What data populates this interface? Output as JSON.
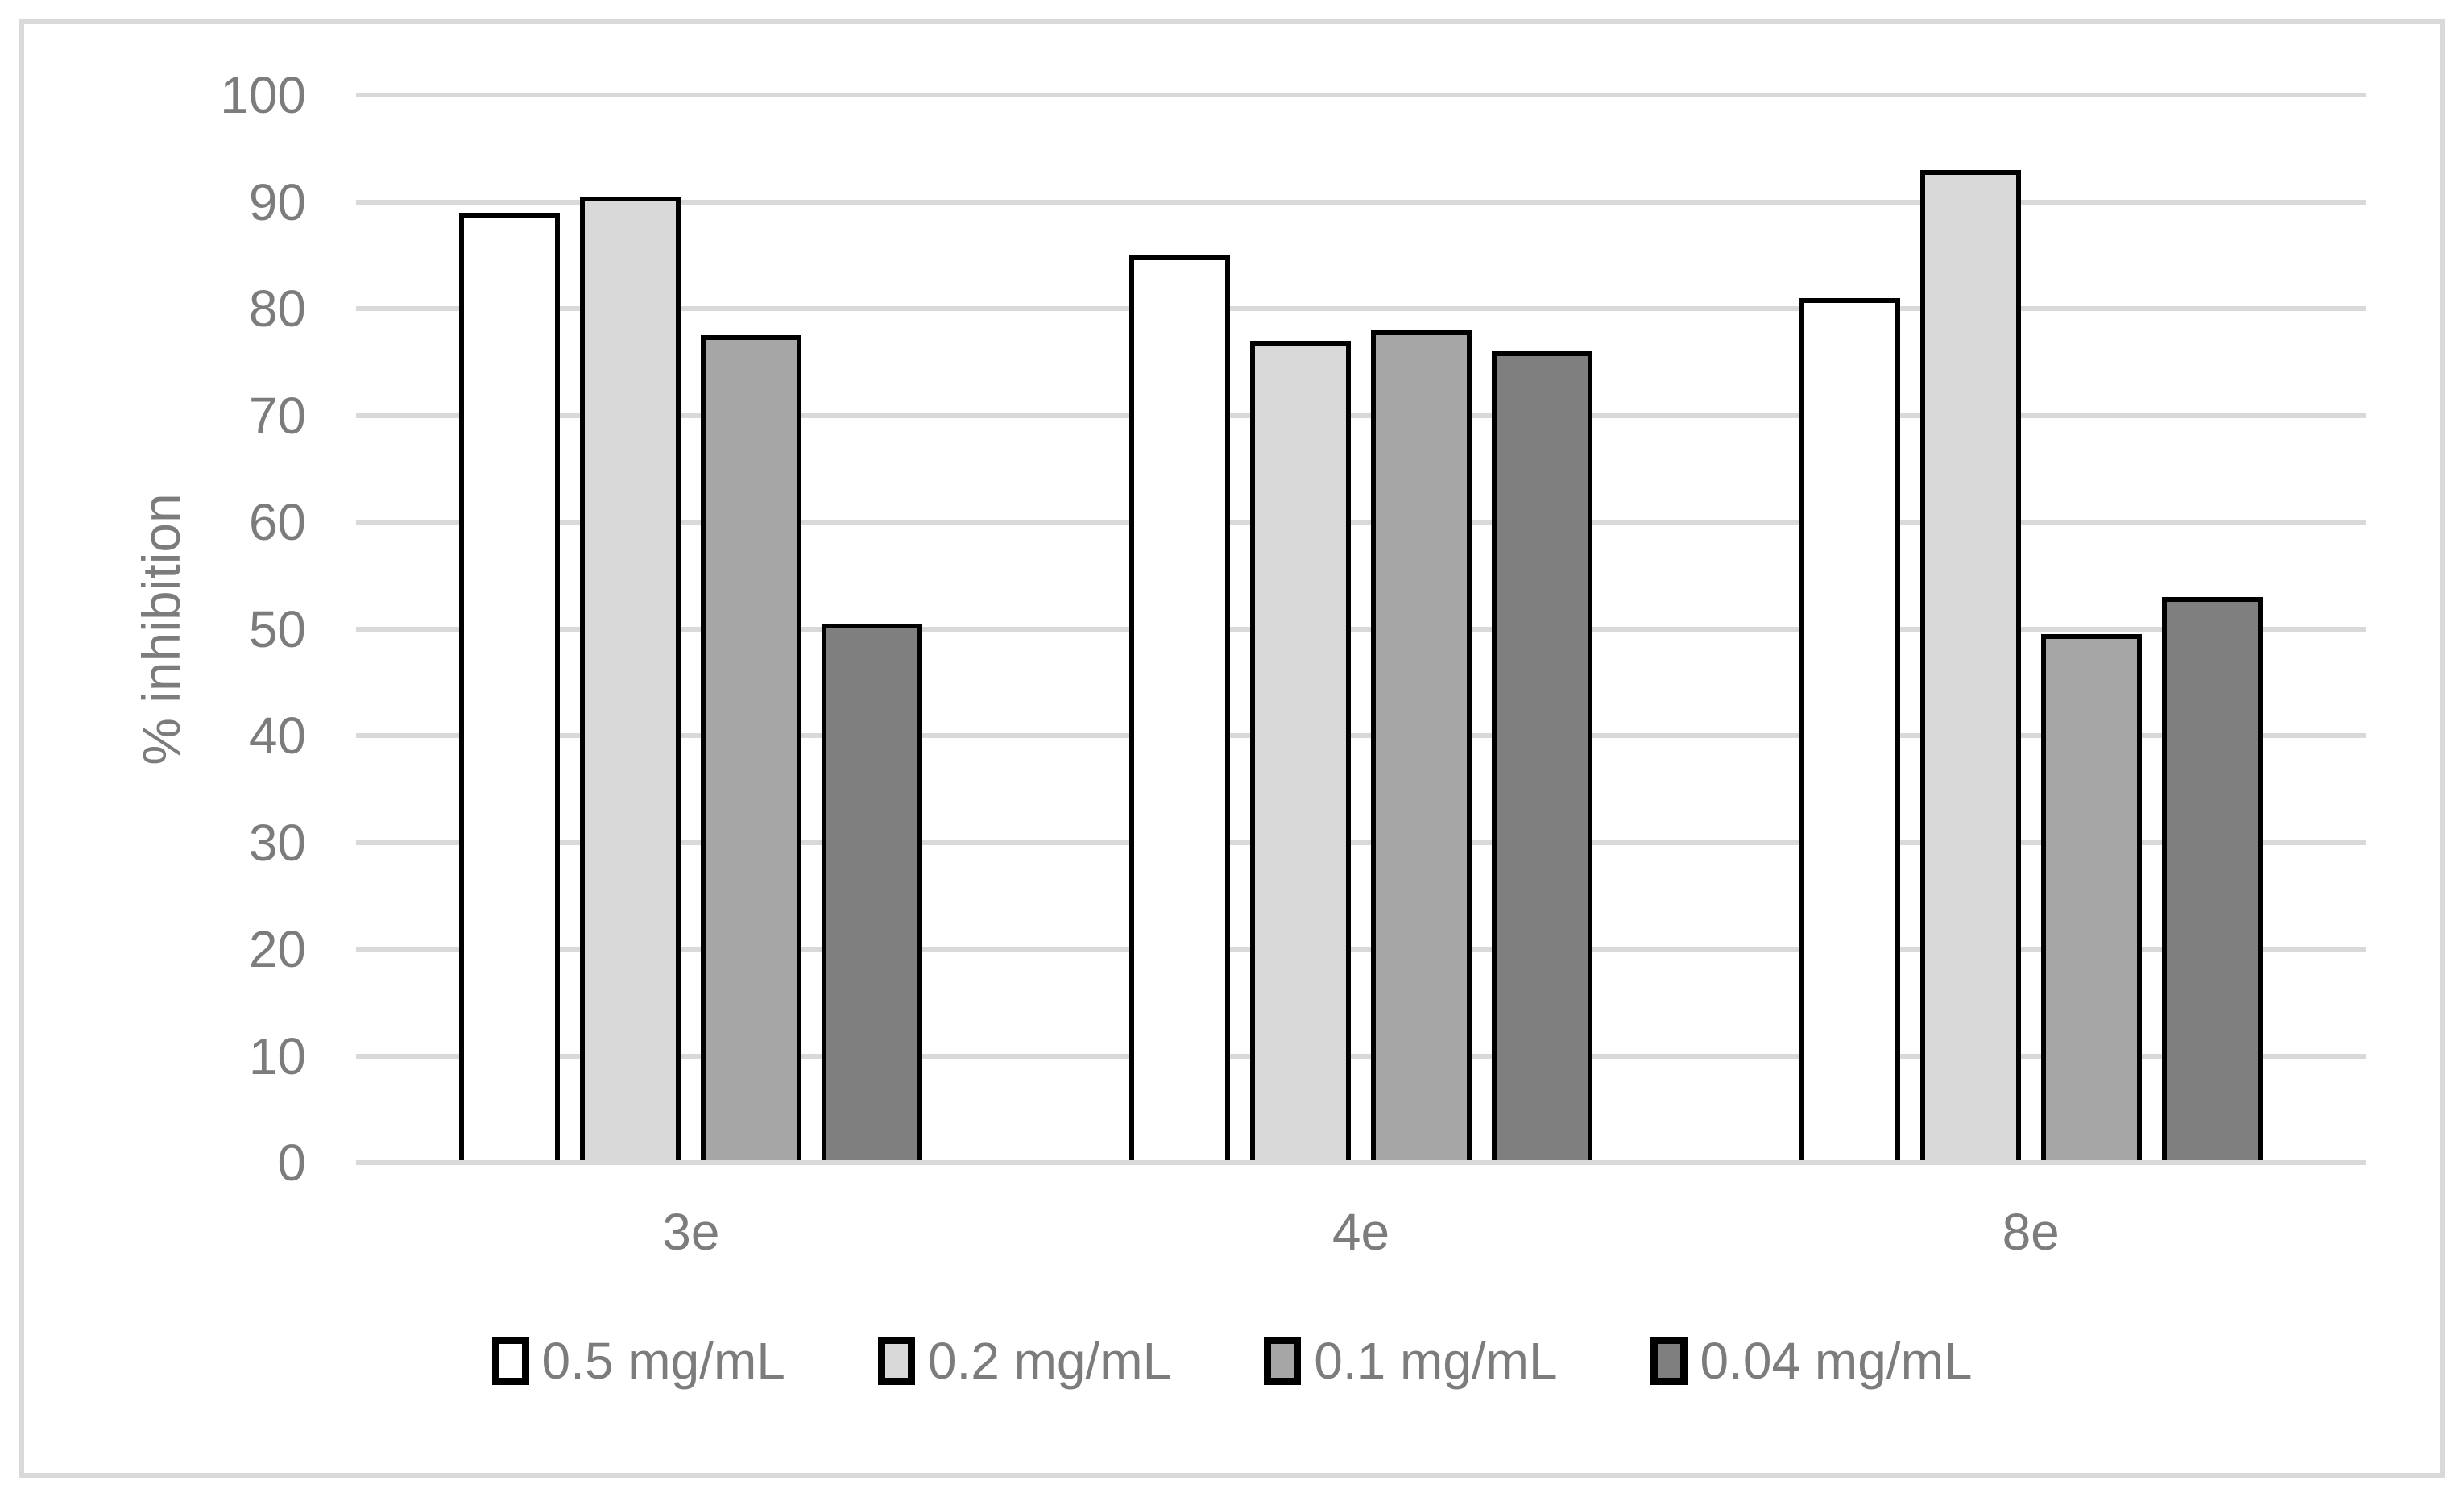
{
  "chart_data": {
    "type": "bar",
    "title": "",
    "xlabel": "",
    "ylabel": "% inhibition",
    "ylim": [
      0,
      100
    ],
    "ytick_step": 10,
    "ytick_labels": [
      "0",
      "10",
      "20",
      "30",
      "40",
      "50",
      "60",
      "70",
      "80",
      "90",
      "100"
    ],
    "categories": [
      "3e",
      "4e",
      "8e"
    ],
    "series": [
      {
        "name": "0.5 mg/mL",
        "color": "#ffffff",
        "values": [
          89,
          85,
          81
        ]
      },
      {
        "name": "0.2 mg/mL",
        "color": "#d9d9d9",
        "values": [
          90.5,
          77,
          93
        ]
      },
      {
        "name": "0.1 mg/mL",
        "color": "#a6a6a6",
        "values": [
          77.5,
          78,
          49.5
        ]
      },
      {
        "name": "0.04 mg/mL",
        "color": "#7f7f7f",
        "values": [
          50.5,
          76,
          53
        ]
      }
    ],
    "grid": true,
    "legend_position": "bottom",
    "colors": {
      "bar_border": "#000000",
      "gridline": "#d9d9d9",
      "axis_text": "#7c7c7c",
      "chart_border": "#d9d9d9",
      "background": "#ffffff"
    }
  }
}
